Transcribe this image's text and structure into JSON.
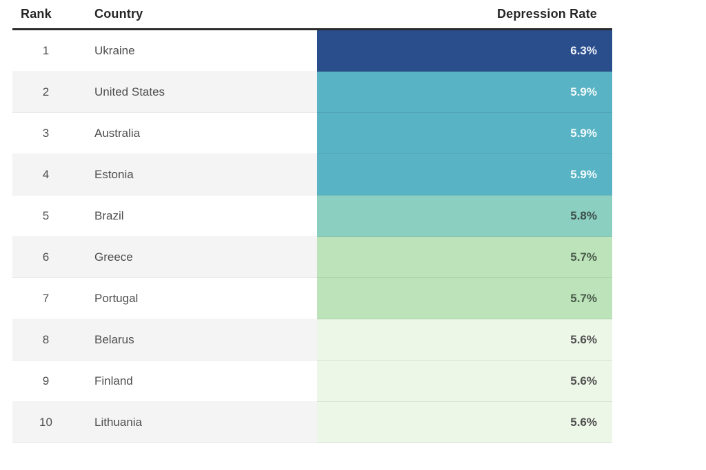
{
  "table": {
    "columns": [
      "Rank",
      "Country",
      "Depression Rate"
    ],
    "rows": [
      {
        "rank": "1",
        "country": "Ukraine",
        "rate": "6.3%",
        "row_bg": "#ffffff",
        "rate_bg": "#2a4d8c",
        "rate_text_color": "#eef3fa"
      },
      {
        "rank": "2",
        "country": "United States",
        "rate": "5.9%",
        "row_bg": "#f4f4f5",
        "rate_bg": "#58b3c4",
        "rate_text_color": "#f2fafb"
      },
      {
        "rank": "3",
        "country": "Australia",
        "rate": "5.9%",
        "row_bg": "#ffffff",
        "rate_bg": "#58b3c4",
        "rate_text_color": "#f2fafb"
      },
      {
        "rank": "4",
        "country": "Estonia",
        "rate": "5.9%",
        "row_bg": "#f4f4f5",
        "rate_bg": "#58b3c4",
        "rate_text_color": "#f2fafb"
      },
      {
        "rank": "5",
        "country": "Brazil",
        "rate": "5.8%",
        "row_bg": "#ffffff",
        "rate_bg": "#8bcfc0",
        "rate_text_color": "#3c4f4a"
      },
      {
        "rank": "6",
        "country": "Greece",
        "rate": "5.7%",
        "row_bg": "#f4f4f5",
        "rate_bg": "#bce3ba",
        "rate_text_color": "#4a5c4a"
      },
      {
        "rank": "7",
        "country": "Portugal",
        "rate": "5.7%",
        "row_bg": "#ffffff",
        "rate_bg": "#bce3ba",
        "rate_text_color": "#4a5c4a"
      },
      {
        "rank": "8",
        "country": "Belarus",
        "rate": "5.6%",
        "row_bg": "#f4f4f5",
        "rate_bg": "#edf7e8",
        "rate_text_color": "#4f4f4f"
      },
      {
        "rank": "9",
        "country": "Finland",
        "rate": "5.6%",
        "row_bg": "#ffffff",
        "rate_bg": "#edf7e8",
        "rate_text_color": "#4f4f4f"
      },
      {
        "rank": "10",
        "country": "Lithuania",
        "rate": "5.6%",
        "row_bg": "#f4f4f5",
        "rate_bg": "#edf7e8",
        "rate_text_color": "#4f4f4f"
      }
    ]
  },
  "colors": {
    "header_line": "#2b2b2b",
    "header_text": "#262626",
    "body_text": "#4e4e4e",
    "alt_row_bg": "#f4f4f5",
    "scale_high": "#2a4d8c",
    "scale_mid_high": "#58b3c4",
    "scale_mid": "#8bcfc0",
    "scale_mid_low": "#bce3ba",
    "scale_low": "#edf7e8"
  },
  "chart_data": {
    "type": "table",
    "title": "",
    "columns": [
      "Rank",
      "Country",
      "Depression Rate"
    ],
    "ranks": [
      1,
      2,
      3,
      4,
      5,
      6,
      7,
      8,
      9,
      10
    ],
    "countries": [
      "Ukraine",
      "United States",
      "Australia",
      "Estonia",
      "Brazil",
      "Greece",
      "Portugal",
      "Belarus",
      "Finland",
      "Lithuania"
    ],
    "values": [
      6.3,
      5.9,
      5.9,
      5.9,
      5.8,
      5.7,
      5.7,
      5.6,
      5.6,
      5.6
    ],
    "unit": "%",
    "layout_hints": {
      "rate_column_colored": true,
      "color_encodes_value": "darker blue = higher rate, pale green = lower rate",
      "value_alignment": "right",
      "zebra_striping": true
    }
  }
}
